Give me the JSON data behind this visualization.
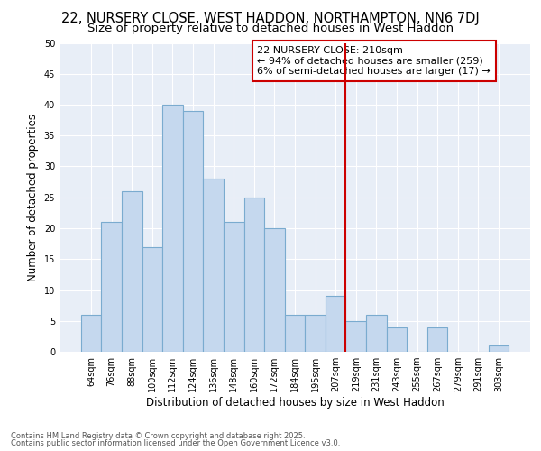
{
  "title": "22, NURSERY CLOSE, WEST HADDON, NORTHAMPTON, NN6 7DJ",
  "subtitle": "Size of property relative to detached houses in West Haddon",
  "xlabel": "Distribution of detached houses by size in West Haddon",
  "ylabel": "Number of detached properties",
  "categories": [
    "64sqm",
    "76sqm",
    "88sqm",
    "100sqm",
    "112sqm",
    "124sqm",
    "136sqm",
    "148sqm",
    "160sqm",
    "172sqm",
    "184sqm",
    "195sqm",
    "207sqm",
    "219sqm",
    "231sqm",
    "243sqm",
    "255sqm",
    "267sqm",
    "279sqm",
    "291sqm",
    "303sqm"
  ],
  "values": [
    6,
    21,
    26,
    17,
    40,
    39,
    28,
    21,
    25,
    20,
    6,
    6,
    9,
    5,
    6,
    4,
    0,
    4,
    0,
    0,
    1
  ],
  "bar_color": "#c5d8ee",
  "bar_edge_color": "#7aabcf",
  "vline_color": "#cc0000",
  "ylim": [
    0,
    50
  ],
  "yticks": [
    0,
    5,
    10,
    15,
    20,
    25,
    30,
    35,
    40,
    45,
    50
  ],
  "annotation_title": "22 NURSERY CLOSE: 210sqm",
  "annotation_line1": "← 94% of detached houses are smaller (259)",
  "annotation_line2": "6% of semi-detached houses are larger (17) →",
  "annotation_box_color": "#cc0000",
  "footer_line1": "Contains HM Land Registry data © Crown copyright and database right 2025.",
  "footer_line2": "Contains public sector information licensed under the Open Government Licence v3.0.",
  "fig_bg_color": "#ffffff",
  "axes_bg_color": "#e8eef7",
  "grid_color": "#ffffff",
  "title_fontsize": 10.5,
  "subtitle_fontsize": 9.5,
  "tick_fontsize": 7,
  "ylabel_fontsize": 8.5,
  "xlabel_fontsize": 8.5,
  "footer_fontsize": 6,
  "ann_fontsize": 8
}
